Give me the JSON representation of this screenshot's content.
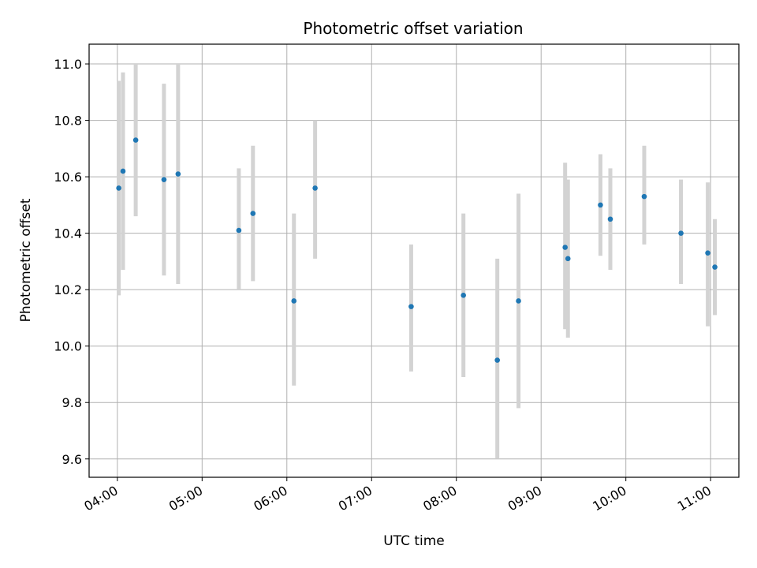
{
  "chart_data": {
    "type": "scatter",
    "title": "Photometric offset variation",
    "xlabel": "UTC time",
    "ylabel": "Photometric offset",
    "x_tick_labels": [
      "04:00",
      "05:00",
      "06:00",
      "07:00",
      "08:00",
      "09:00",
      "10:00",
      "11:00"
    ],
    "y_tick_labels": [
      "9.6",
      "9.8",
      "10.0",
      "10.2",
      "10.4",
      "10.6",
      "10.8",
      "11.0"
    ],
    "y_ticks": [
      9.6,
      9.8,
      10.0,
      10.2,
      10.4,
      10.6,
      10.8,
      11.0
    ],
    "xlim": [
      "03:40",
      "11:20"
    ],
    "ylim": [
      9.535,
      11.07
    ],
    "grid": true,
    "point_color": "#1f77b4",
    "errorbar_color": "#d3d3d3",
    "points": [
      {
        "time": "04:01",
        "value": 10.56,
        "low": 10.18,
        "high": 10.94
      },
      {
        "time": "04:04",
        "value": 10.62,
        "low": 10.27,
        "high": 10.97
      },
      {
        "time": "04:13",
        "value": 10.73,
        "low": 10.46,
        "high": 11.0
      },
      {
        "time": "04:33",
        "value": 10.59,
        "low": 10.25,
        "high": 10.93
      },
      {
        "time": "04:43",
        "value": 10.61,
        "low": 10.22,
        "high": 11.0
      },
      {
        "time": "05:26",
        "value": 10.41,
        "low": 10.2,
        "high": 10.63
      },
      {
        "time": "05:36",
        "value": 10.47,
        "low": 10.23,
        "high": 10.71
      },
      {
        "time": "06:05",
        "value": 10.16,
        "low": 9.86,
        "high": 10.47
      },
      {
        "time": "06:20",
        "value": 10.56,
        "low": 10.31,
        "high": 10.8
      },
      {
        "time": "07:28",
        "value": 10.14,
        "low": 9.91,
        "high": 10.36
      },
      {
        "time": "08:05",
        "value": 10.18,
        "low": 9.89,
        "high": 10.47
      },
      {
        "time": "08:29",
        "value": 9.95,
        "low": 9.6,
        "high": 10.31
      },
      {
        "time": "08:44",
        "value": 10.16,
        "low": 9.78,
        "high": 10.54
      },
      {
        "time": "09:17",
        "value": 10.35,
        "low": 10.06,
        "high": 10.65
      },
      {
        "time": "09:19",
        "value": 10.31,
        "low": 10.03,
        "high": 10.59
      },
      {
        "time": "09:42",
        "value": 10.5,
        "low": 10.32,
        "high": 10.68
      },
      {
        "time": "09:49",
        "value": 10.45,
        "low": 10.27,
        "high": 10.63
      },
      {
        "time": "10:13",
        "value": 10.53,
        "low": 10.36,
        "high": 10.71
      },
      {
        "time": "10:39",
        "value": 10.4,
        "low": 10.22,
        "high": 10.59
      },
      {
        "time": "10:58",
        "value": 10.33,
        "low": 10.07,
        "high": 10.58
      },
      {
        "time": "11:03",
        "value": 10.28,
        "low": 10.11,
        "high": 10.45
      }
    ]
  }
}
